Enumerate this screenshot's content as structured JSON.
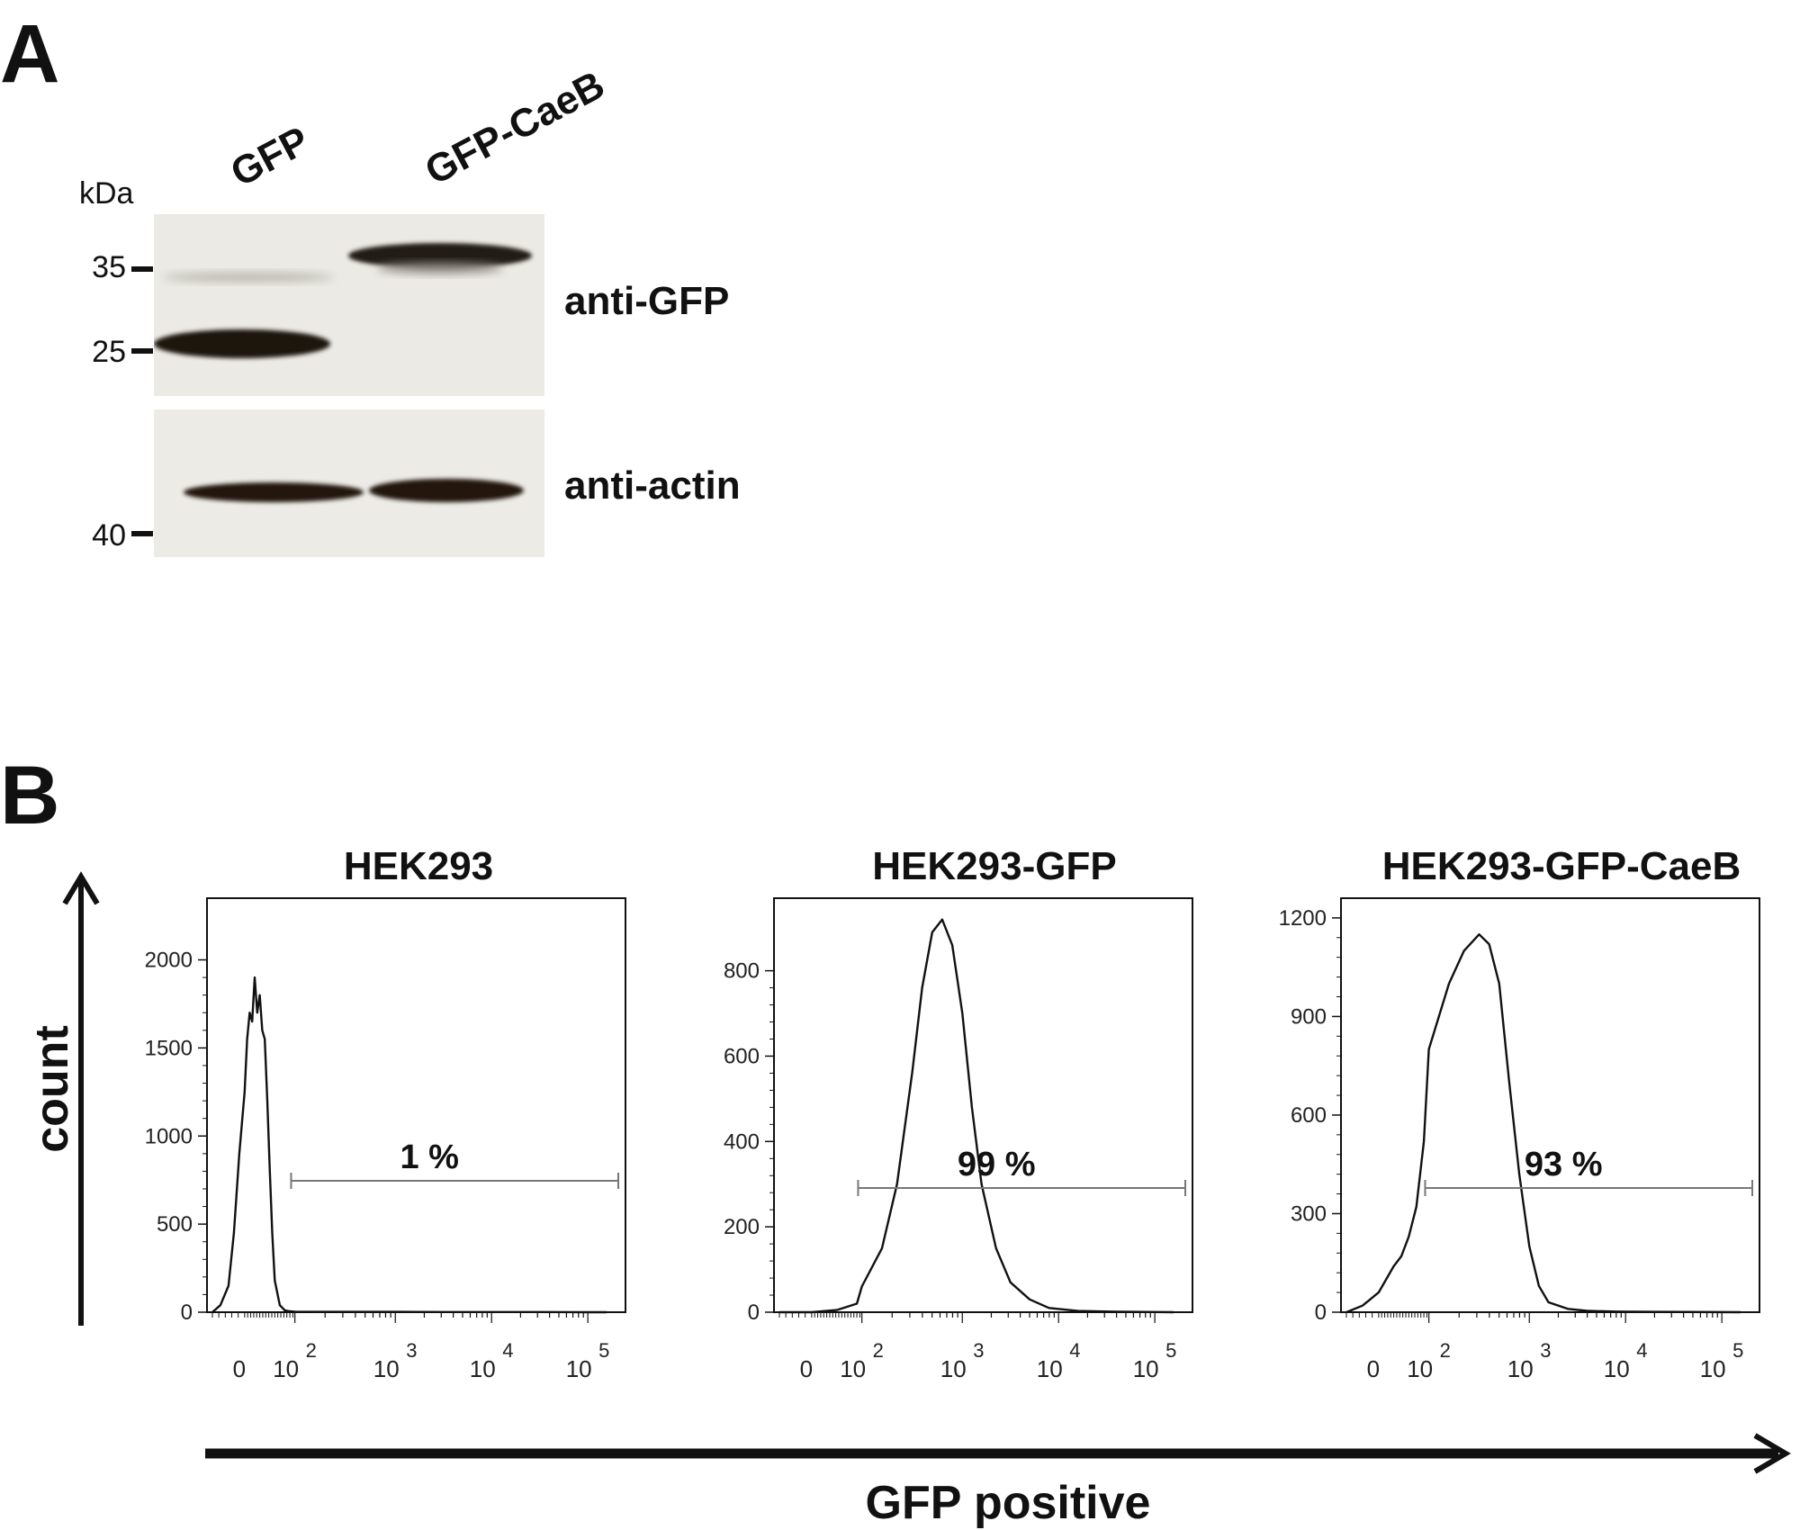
{
  "panel_a": {
    "letter": "A",
    "lanes": [
      "GFP",
      "GFP-CaeB"
    ],
    "unit_label": "kDa",
    "markers_top": [
      "35",
      "25"
    ],
    "markers_bottom": [
      "40"
    ],
    "antibodies": [
      "anti-GFP",
      "anti-actin"
    ]
  },
  "panel_b": {
    "letter": "B",
    "y_axis_label": "count",
    "x_axis_label": "GFP positive"
  },
  "chart_data": [
    {
      "type": "area",
      "title": "HEK293",
      "x_tick_labels": [
        "0",
        "10",
        "10",
        "10",
        "10"
      ],
      "x_tick_exponents": [
        "",
        "2",
        "3",
        "4",
        "5"
      ],
      "y_ticks": [
        0,
        500,
        1000,
        1500,
        2000
      ],
      "ylim": [
        0,
        2350
      ],
      "gate_label": "1 %",
      "series": [
        {
          "x": [
            -0.6,
            -0.45,
            -0.3,
            -0.2,
            -0.1,
            0.0,
            0.1,
            0.2,
            0.3,
            0.4,
            0.5,
            0.6,
            0.7,
            0.8,
            0.9,
            1.0,
            1.1,
            1.2,
            1.4,
            1.6,
            1.8,
            2.0,
            2.5,
            3.0,
            3.5,
            4.0,
            4.5,
            5.0,
            5.2
          ],
          "y": [
            0,
            40,
            150,
            450,
            900,
            1250,
            1550,
            1700,
            1650,
            1900,
            1700,
            1800,
            1600,
            1550,
            1200,
            800,
            450,
            180,
            40,
            10,
            5,
            3,
            2,
            2,
            1,
            1,
            1,
            0,
            0
          ]
        }
      ]
    },
    {
      "type": "area",
      "title": "HEK293-GFP",
      "x_tick_labels": [
        "0",
        "10",
        "10",
        "10",
        "10"
      ],
      "x_tick_exponents": [
        "",
        "2",
        "3",
        "4",
        "5"
      ],
      "y_ticks": [
        0,
        200,
        400,
        600,
        800
      ],
      "ylim": [
        0,
        970
      ],
      "gate_label": "99 %",
      "series": [
        {
          "x": [
            -0.6,
            0.0,
            1.0,
            1.8,
            2.0,
            2.2,
            2.35,
            2.5,
            2.6,
            2.7,
            2.8,
            2.9,
            3.0,
            3.1,
            3.2,
            3.35,
            3.5,
            3.7,
            3.9,
            4.2,
            4.6,
            5.2
          ],
          "y": [
            0,
            0,
            5,
            20,
            60,
            150,
            300,
            560,
            760,
            890,
            920,
            860,
            700,
            480,
            300,
            150,
            70,
            30,
            10,
            3,
            1,
            0
          ]
        }
      ]
    },
    {
      "type": "area",
      "title": "HEK293-GFP-CaeB",
      "x_tick_labels": [
        "0",
        "10",
        "10",
        "10",
        "10"
      ],
      "x_tick_exponents": [
        "",
        "2",
        "3",
        "4",
        "5"
      ],
      "y_ticks": [
        0,
        300,
        600,
        900,
        1200
      ],
      "ylim": [
        0,
        1260
      ],
      "gate_label": "93 %",
      "series": [
        {
          "x": [
            -0.6,
            -0.3,
            0.0,
            0.3,
            0.6,
            0.9,
            1.2,
            1.5,
            1.8,
            2.0,
            2.2,
            2.35,
            2.5,
            2.6,
            2.7,
            2.8,
            2.9,
            3.0,
            3.1,
            3.2,
            3.4,
            3.6,
            3.9,
            4.3,
            5.2
          ],
          "y": [
            0,
            20,
            60,
            100,
            140,
            170,
            230,
            320,
            520,
            800,
            1000,
            1100,
            1150,
            1120,
            1000,
            700,
            420,
            200,
            80,
            30,
            10,
            4,
            2,
            1,
            0
          ]
        }
      ]
    }
  ]
}
